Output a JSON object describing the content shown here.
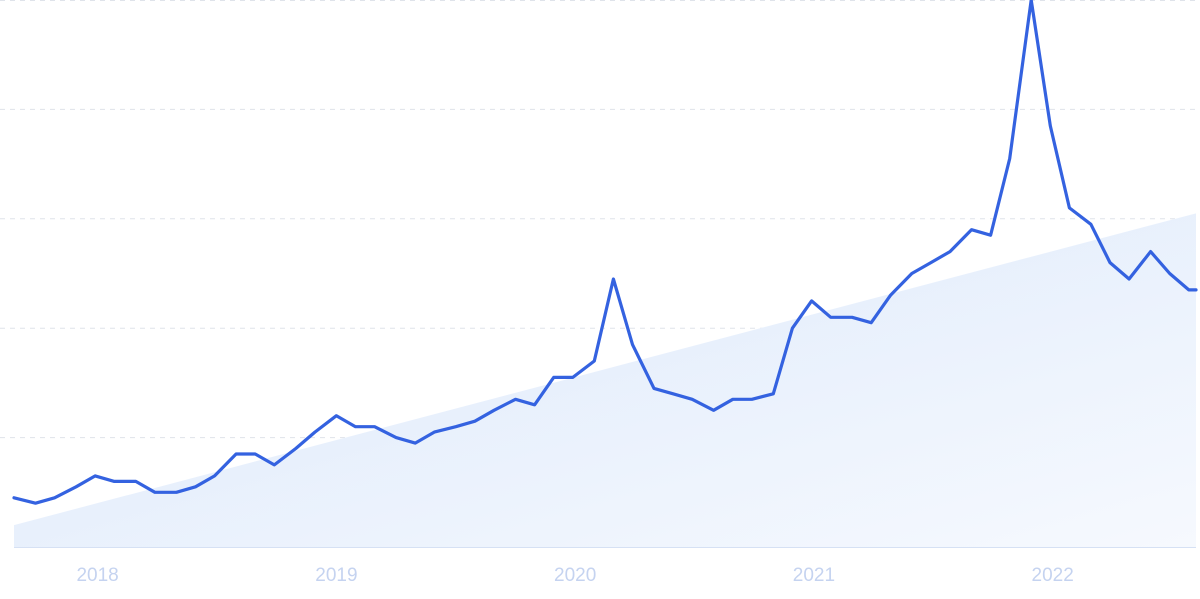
{
  "chart_data": {
    "type": "line",
    "title": "",
    "xlabel": "",
    "ylabel": "",
    "x_ticks": [
      "2018",
      "2019",
      "2020",
      "2021",
      "2022"
    ],
    "x_tick_values": [
      2018.0,
      2019.0,
      2020.0,
      2021.0,
      2022.0
    ],
    "xlim": [
      2017.65,
      2022.6
    ],
    "ylim": [
      0,
      100
    ],
    "y_gridlines": [
      20,
      40,
      60,
      80,
      100
    ],
    "grid": true,
    "trend_area": {
      "start": [
        2017.65,
        4
      ],
      "end": [
        2022.6,
        61
      ]
    },
    "colors": {
      "line": "#3462e0",
      "grid": "#dfe3ea",
      "axis": "#d6e1f4",
      "trend_fill_start": "#dbe8fb",
      "trend_fill_end": "#f6f9fe",
      "tick_text": "#c5d3f0"
    },
    "series": [
      {
        "values": [
          [
            2017.65,
            9
          ],
          [
            2017.74,
            8
          ],
          [
            2017.82,
            9
          ],
          [
            2017.91,
            11
          ],
          [
            2017.99,
            13
          ],
          [
            2018.07,
            12
          ],
          [
            2018.16,
            12
          ],
          [
            2018.24,
            10
          ],
          [
            2018.33,
            10
          ],
          [
            2018.41,
            11
          ],
          [
            2018.49,
            13
          ],
          [
            2018.58,
            17
          ],
          [
            2018.66,
            17
          ],
          [
            2018.74,
            15
          ],
          [
            2018.83,
            18
          ],
          [
            2018.91,
            21
          ],
          [
            2019.0,
            24
          ],
          [
            2019.08,
            22
          ],
          [
            2019.16,
            22
          ],
          [
            2019.25,
            20
          ],
          [
            2019.33,
            19
          ],
          [
            2019.41,
            21
          ],
          [
            2019.5,
            22
          ],
          [
            2019.58,
            23
          ],
          [
            2019.66,
            25
          ],
          [
            2019.75,
            27
          ],
          [
            2019.83,
            26
          ],
          [
            2019.91,
            31
          ],
          [
            2019.99,
            31
          ],
          [
            2020.08,
            34
          ],
          [
            2020.16,
            49
          ],
          [
            2020.24,
            37
          ],
          [
            2020.33,
            29
          ],
          [
            2020.41,
            28
          ],
          [
            2020.49,
            27
          ],
          [
            2020.58,
            25
          ],
          [
            2020.66,
            27
          ],
          [
            2020.74,
            27
          ],
          [
            2020.83,
            28
          ],
          [
            2020.91,
            40
          ],
          [
            2020.99,
            45
          ],
          [
            2021.07,
            42
          ],
          [
            2021.16,
            42
          ],
          [
            2021.24,
            41
          ],
          [
            2021.32,
            46
          ],
          [
            2021.41,
            50
          ],
          [
            2021.49,
            52
          ],
          [
            2021.57,
            54
          ],
          [
            2021.66,
            58
          ],
          [
            2021.74,
            57
          ],
          [
            2021.82,
            71
          ],
          [
            2021.91,
            100
          ],
          [
            2021.99,
            77
          ],
          [
            2022.07,
            62
          ],
          [
            2022.16,
            59
          ],
          [
            2022.24,
            52
          ],
          [
            2022.32,
            49
          ],
          [
            2022.41,
            54
          ],
          [
            2022.49,
            50
          ],
          [
            2022.57,
            47
          ],
          [
            2022.6,
            47
          ]
        ]
      }
    ]
  }
}
